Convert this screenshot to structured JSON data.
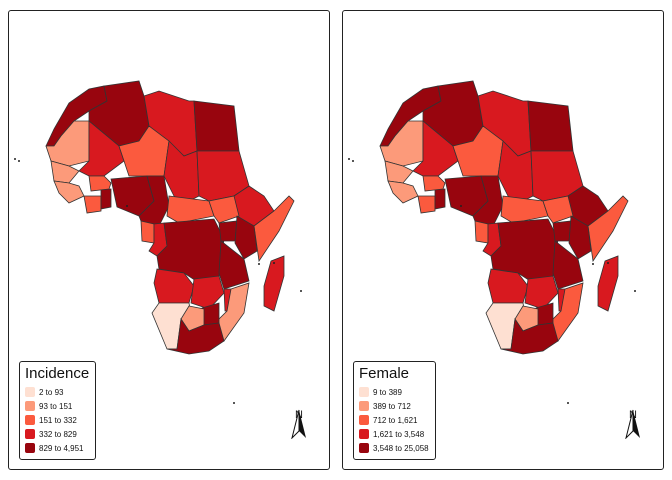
{
  "palette": [
    "#FEE0D2",
    "#FC9A7A",
    "#FB5A3E",
    "#D8191F",
    "#98050E"
  ],
  "panels": [
    {
      "legend": {
        "title": "Incidence",
        "items": [
          "2 to 93",
          "93 to 151",
          "151 to 332",
          "332 to 829",
          "829 to 4,951"
        ]
      },
      "classes": {
        "morocco": 4,
        "algeria": 4,
        "mauritania": 1,
        "mali": 3,
        "libya": 3,
        "egypt": 4,
        "niger": 2,
        "chad": 3,
        "sudan": 3,
        "ethiopia": 3,
        "somalia": 2,
        "senegal": 1,
        "guinea": 1,
        "ivory_coast": 2,
        "ghana": 4,
        "burkina": 2,
        "nigeria": 4,
        "cameroon": 4,
        "car": 2,
        "south_sudan": 2,
        "gabon": 2,
        "congo": 3,
        "drc": 4,
        "uganda": 4,
        "kenya": 4,
        "tanzania": 4,
        "angola": 3,
        "zambia": 3,
        "mozambique": 1,
        "zimbabwe": 4,
        "malawi": 3,
        "namibia": 0,
        "botswana": 1,
        "south_africa": 4,
        "madagascar": 3
      },
      "north_label": "N"
    },
    {
      "legend": {
        "title": "Female",
        "items": [
          "9 to 389",
          "389 to 712",
          "712 to 1,621",
          "1,621 to 3,548",
          "3,548 to 25,058"
        ]
      },
      "classes": {
        "morocco": 4,
        "algeria": 4,
        "mauritania": 1,
        "mali": 3,
        "libya": 3,
        "egypt": 4,
        "niger": 2,
        "chad": 3,
        "sudan": 3,
        "ethiopia": 4,
        "somalia": 2,
        "senegal": 1,
        "guinea": 1,
        "ivory_coast": 2,
        "ghana": 4,
        "burkina": 2,
        "nigeria": 4,
        "cameroon": 4,
        "car": 2,
        "south_sudan": 2,
        "gabon": 2,
        "congo": 3,
        "drc": 4,
        "uganda": 4,
        "kenya": 4,
        "tanzania": 4,
        "angola": 3,
        "zambia": 3,
        "mozambique": 2,
        "zimbabwe": 4,
        "malawi": 3,
        "namibia": 0,
        "botswana": 1,
        "south_africa": 4,
        "madagascar": 3
      },
      "north_label": "N"
    }
  ]
}
